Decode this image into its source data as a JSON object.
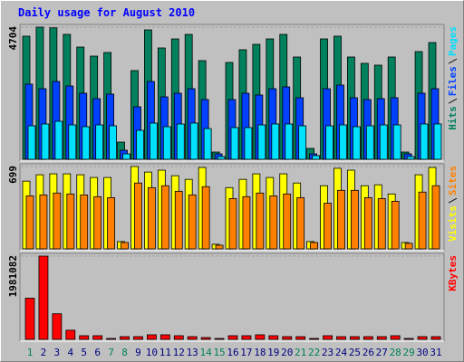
{
  "chart_data": [
    {
      "type": "bar",
      "title": "Daily usage for August 2010",
      "series": [
        {
          "name": "Hits",
          "color": "#00805c",
          "values": [
            4382,
            4704,
            4680,
            4446,
            3995,
            3673,
            3802,
            612,
            3157,
            4607,
            3963,
            4285,
            4446,
            3512,
            258,
            3447,
            3899,
            4092,
            4285,
            4446,
            3641,
            387,
            4285,
            4382,
            3641,
            3415,
            3351,
            3641,
            258,
            3834,
            4156
          ]
        },
        {
          "name": "Files",
          "color": "#0040ff",
          "values": [
            2674,
            2513,
            2771,
            2610,
            2352,
            2159,
            2320,
            322,
            1869,
            2771,
            2223,
            2352,
            2513,
            2127,
            193,
            2127,
            2352,
            2288,
            2513,
            2578,
            2191,
            193,
            2513,
            2642,
            2191,
            2127,
            2159,
            2191,
            193,
            2352,
            2513
          ]
        },
        {
          "name": "Pages",
          "color": "#00e0ff",
          "values": [
            1192,
            1257,
            1353,
            1224,
            1160,
            1224,
            1192,
            193,
            1031,
            1289,
            1160,
            1257,
            1289,
            1095,
            97,
            1128,
            1128,
            1224,
            1257,
            1257,
            1192,
            129,
            1192,
            1224,
            1160,
            1192,
            1224,
            1224,
            97,
            1257,
            1257
          ]
        }
      ],
      "ylim": [
        0,
        4704
      ],
      "yticks": [
        4704
      ]
    },
    {
      "type": "bar",
      "series": [
        {
          "name": "Visits",
          "color": "#ffff00",
          "values": [
            575,
            629,
            637,
            637,
            629,
            606,
            606,
            62,
            699,
            652,
            668,
            621,
            590,
            691,
            39,
            520,
            590,
            637,
            606,
            637,
            559,
            62,
            536,
            684,
            668,
            536,
            544,
            466,
            54,
            629,
            691
          ]
        },
        {
          "name": "Sites",
          "color": "#ff8000",
          "values": [
            450,
            458,
            474,
            466,
            458,
            443,
            435,
            54,
            559,
            520,
            536,
            489,
            458,
            528,
            31,
            427,
            443,
            474,
            450,
            466,
            435,
            54,
            388,
            497,
            497,
            435,
            427,
            404,
            47,
            482,
            536
          ]
        }
      ],
      "ylim": [
        0,
        699
      ],
      "yticks": [
        699
      ]
    },
    {
      "type": "bar",
      "categories": [
        "1",
        "2",
        "3",
        "4",
        "5",
        "6",
        "7",
        "8",
        "9",
        "10",
        "11",
        "12",
        "13",
        "14",
        "15",
        "16",
        "17",
        "18",
        "19",
        "20",
        "21",
        "22",
        "23",
        "24",
        "25",
        "26",
        "27",
        "28",
        "29",
        "30",
        "31"
      ],
      "category_colors": [
        "#00805c",
        "#000080",
        "#000080",
        "#000080",
        "#000080",
        "#000080",
        "#00805c",
        "#00805c",
        "#000080",
        "#000080",
        "#000080",
        "#000080",
        "#000080",
        "#00805c",
        "#00805c",
        "#000080",
        "#000080",
        "#000080",
        "#000080",
        "#000080",
        "#00805c",
        "#00805c",
        "#000080",
        "#000080",
        "#000080",
        "#000080",
        "#000080",
        "#00805c",
        "#00805c",
        "#000080",
        "#000080"
      ],
      "series": [
        {
          "name": "KBytes",
          "color": "#ff0000",
          "values": [
            979650,
            1981082,
            609560,
            217700,
            87080,
            87080,
            21770,
            65310,
            65310,
            108850,
            108850,
            87080,
            65310,
            43540,
            21770,
            87080,
            87080,
            108850,
            87080,
            65310,
            65310,
            21770,
            87080,
            65310,
            65310,
            65310,
            65310,
            87080,
            21770,
            65310,
            65310
          ]
        }
      ],
      "ylim": [
        0,
        1981082
      ],
      "yticks": [
        1981082
      ]
    }
  ]
}
